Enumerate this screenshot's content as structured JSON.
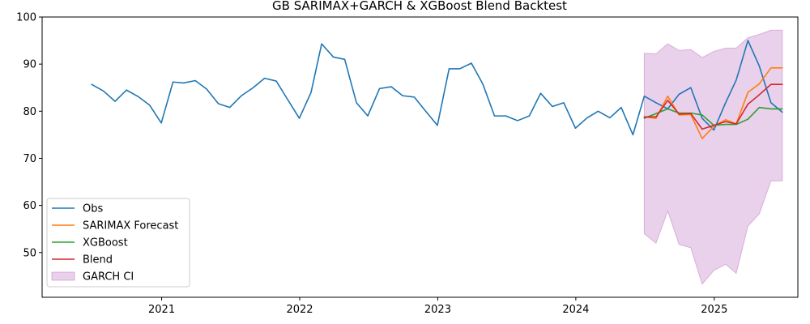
{
  "chart_data": {
    "type": "line",
    "title": "GB SARIMAX+GARCH & XGBoost Blend Backtest",
    "xlabel": "",
    "ylabel": "",
    "xlim": [
      "2020-02-20",
      "2025-08-10"
    ],
    "ylim": [
      40.5,
      100
    ],
    "x_ticks": [
      "2021-01-01",
      "2022-01-01",
      "2023-01-01",
      "2024-01-01",
      "2025-01-01"
    ],
    "x_tick_labels": [
      "2021",
      "2022",
      "2023",
      "2024",
      "2025"
    ],
    "y_ticks": [
      50,
      60,
      70,
      80,
      90,
      100
    ],
    "y_tick_labels": [
      "50",
      "60",
      "70",
      "80",
      "90",
      "100"
    ],
    "grid": false,
    "legend_position": "lower-left",
    "colors": {
      "obs": "#1f77b4",
      "sarimax": "#ff7f0e",
      "xgboost": "#2ca02c",
      "blend": "#d62728",
      "ci": "#c177c6"
    },
    "legend": [
      "Obs",
      "SARIMAX Forecast",
      "XGBoost",
      "Blend",
      "GARCH CI"
    ],
    "series": [
      {
        "name": "Obs",
        "color": "#1f77b4",
        "x": [
          "2020-06-30",
          "2020-07-31",
          "2020-08-31",
          "2020-09-30",
          "2020-10-31",
          "2020-11-30",
          "2020-12-31",
          "2021-01-31",
          "2021-02-28",
          "2021-03-31",
          "2021-04-30",
          "2021-05-31",
          "2021-06-30",
          "2021-07-31",
          "2021-08-31",
          "2021-09-30",
          "2021-10-31",
          "2021-11-30",
          "2021-12-31",
          "2022-01-31",
          "2022-02-28",
          "2022-03-31",
          "2022-04-30",
          "2022-05-31",
          "2022-06-30",
          "2022-07-31",
          "2022-08-31",
          "2022-09-30",
          "2022-10-31",
          "2022-11-30",
          "2022-12-31",
          "2023-01-31",
          "2023-02-28",
          "2023-03-31",
          "2023-04-30",
          "2023-05-31",
          "2023-06-30",
          "2023-07-31",
          "2023-08-31",
          "2023-09-30",
          "2023-10-31",
          "2023-11-30",
          "2023-12-31",
          "2024-01-31",
          "2024-02-29",
          "2024-03-31",
          "2024-04-30",
          "2024-05-31",
          "2024-06-30",
          "2024-07-31",
          "2024-08-31",
          "2024-09-30",
          "2024-10-31",
          "2024-11-30",
          "2024-12-31",
          "2025-01-31",
          "2025-02-28",
          "2025-03-31",
          "2025-04-30",
          "2025-05-31",
          "2025-06-30"
        ],
        "values": [
          85.7,
          84.3,
          82.1,
          84.5,
          83.1,
          81.3,
          77.5,
          86.2,
          86.0,
          86.5,
          84.7,
          81.6,
          80.8,
          83.3,
          85.0,
          87.0,
          86.4,
          82.5,
          78.5,
          84.0,
          94.3,
          91.5,
          91.0,
          81.8,
          79.0,
          84.8,
          85.2,
          83.3,
          83.0,
          80.0,
          77.0,
          89.0,
          89.0,
          90.2,
          85.8,
          79.0,
          79.0,
          78.0,
          79.0,
          83.8,
          81.0,
          81.8,
          76.4,
          78.6,
          80.0,
          78.6,
          80.8,
          75.0,
          83.2,
          81.8,
          80.5,
          83.6,
          85.0,
          78.5,
          76.0,
          81.8,
          86.6,
          95.0,
          89.6,
          81.8,
          79.8
        ]
      },
      {
        "name": "SARIMAX Forecast",
        "color": "#ff7f0e",
        "x": [
          "2024-06-30",
          "2024-07-31",
          "2024-08-31",
          "2024-09-30",
          "2024-10-31",
          "2024-11-30",
          "2024-12-31",
          "2025-01-31",
          "2025-02-28",
          "2025-03-31",
          "2025-04-30",
          "2025-05-31",
          "2025-06-30"
        ],
        "values": [
          78.8,
          78.5,
          83.2,
          79.2,
          79.3,
          74.2,
          76.8,
          78.2,
          77.3,
          84.0,
          85.8,
          89.2,
          89.2
        ]
      },
      {
        "name": "XGBoost",
        "color": "#2ca02c",
        "x": [
          "2024-06-30",
          "2024-07-31",
          "2024-08-31",
          "2024-09-30",
          "2024-10-31",
          "2024-11-30",
          "2024-12-31",
          "2025-01-31",
          "2025-02-28",
          "2025-03-31",
          "2025-04-30",
          "2025-05-31",
          "2025-06-30"
        ],
        "values": [
          78.5,
          79.5,
          80.5,
          79.6,
          79.6,
          79.2,
          77.0,
          77.2,
          77.2,
          78.3,
          80.8,
          80.5,
          80.5
        ]
      },
      {
        "name": "Blend",
        "color": "#d62728",
        "x": [
          "2024-06-30",
          "2024-07-31",
          "2024-08-31",
          "2024-09-30",
          "2024-10-31",
          "2024-11-30",
          "2024-12-31",
          "2025-01-31",
          "2025-02-28",
          "2025-03-31",
          "2025-04-30",
          "2025-05-31",
          "2025-06-30"
        ],
        "values": [
          78.8,
          78.8,
          82.3,
          79.4,
          79.5,
          76.2,
          77.0,
          77.8,
          77.3,
          81.5,
          83.5,
          85.7,
          85.7
        ]
      }
    ],
    "band": {
      "name": "GARCH CI",
      "color": "#c177c6",
      "opacity": 0.35,
      "x": [
        "2024-06-30",
        "2024-07-31",
        "2024-08-31",
        "2024-09-30",
        "2024-10-31",
        "2024-11-30",
        "2024-12-31",
        "2025-01-31",
        "2025-02-28",
        "2025-03-31",
        "2025-04-30",
        "2025-05-31",
        "2025-06-30"
      ],
      "lower": [
        54.0,
        52.0,
        58.8,
        51.7,
        51.0,
        43.3,
        46.2,
        47.5,
        45.6,
        55.6,
        58.2,
        65.2,
        65.2
      ],
      "upper": [
        92.3,
        92.2,
        94.3,
        92.9,
        93.1,
        91.4,
        92.7,
        93.4,
        93.4,
        95.6,
        96.3,
        97.2,
        97.2
      ]
    }
  }
}
